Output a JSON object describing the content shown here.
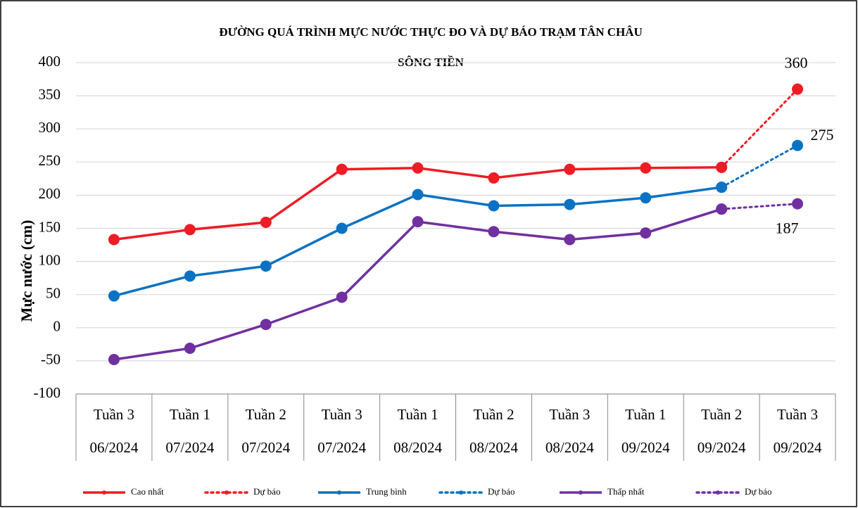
{
  "chart_data": {
    "type": "line",
    "title": "ĐƯỜNG QUÁ TRÌNH MỰC NƯỚC THỰC ĐO VÀ DỰ BÁO TRẠM TÂN CHÂU",
    "subtitle": "SÔNG TIỀN",
    "ylabel": "Mực nước (cm)",
    "categories": [
      [
        "Tuần 3",
        "06/2024"
      ],
      [
        "Tuần 1",
        "07/2024"
      ],
      [
        "Tuần 2",
        "07/2024"
      ],
      [
        "Tuần 3",
        "07/2024"
      ],
      [
        "Tuần 1",
        "08/2024"
      ],
      [
        "Tuần 2",
        "08/2024"
      ],
      [
        "Tuần 3",
        "08/2024"
      ],
      [
        "Tuần 1",
        "09/2024"
      ],
      [
        "Tuần 2",
        "09/2024"
      ],
      [
        "Tuần 3",
        "09/2024"
      ]
    ],
    "ylim": [
      -100,
      400
    ],
    "yticks": [
      -100,
      -50,
      0,
      50,
      100,
      150,
      200,
      250,
      300,
      350,
      400
    ],
    "grid": true,
    "legend": "bottom",
    "series": [
      {
        "name": "Cao nhất",
        "color": "#ee1c25",
        "dash": false,
        "values": [
          133,
          148,
          159,
          239,
          241,
          226,
          239,
          241,
          242,
          null
        ]
      },
      {
        "name": "Dự báo",
        "color": "#ee1c25",
        "dash": true,
        "show_last_label": true,
        "values": [
          null,
          null,
          null,
          null,
          null,
          null,
          null,
          null,
          242,
          360
        ]
      },
      {
        "name": "Trung bình",
        "color": "#0a72c2",
        "dash": false,
        "values": [
          48,
          78,
          93,
          150,
          201,
          184,
          186,
          196,
          212,
          null
        ]
      },
      {
        "name": "Dự báo",
        "color": "#0a72c2",
        "dash": true,
        "show_last_label": true,
        "values": [
          null,
          null,
          null,
          null,
          null,
          null,
          null,
          null,
          212,
          275
        ]
      },
      {
        "name": "Thấp nhất",
        "color": "#7030a0",
        "dash": false,
        "values": [
          -48,
          -31,
          5,
          46,
          160,
          145,
          133,
          143,
          179,
          null
        ]
      },
      {
        "name": "Dự báo",
        "color": "#7030a0",
        "dash": true,
        "show_last_label": true,
        "values": [
          null,
          null,
          null,
          null,
          null,
          null,
          null,
          null,
          179,
          187
        ]
      }
    ]
  }
}
